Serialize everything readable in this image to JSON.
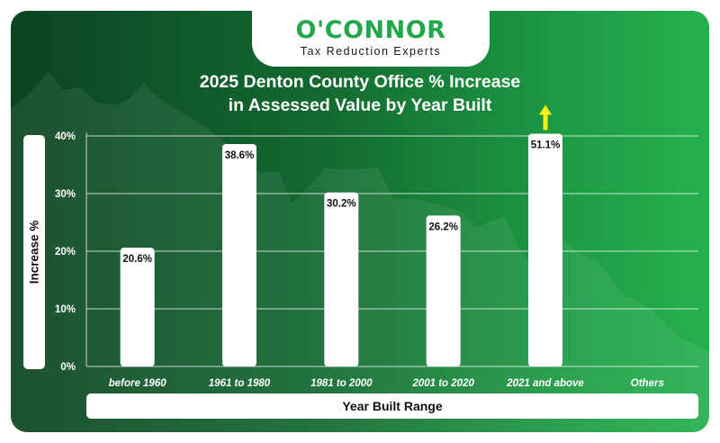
{
  "logo": {
    "name": "O'CONNOR",
    "tagline": "Tax Reduction Experts"
  },
  "colors": {
    "background_dark": "#0c4422",
    "background_light": "#25b04f",
    "bar": "#ffffff",
    "arrow": "#f2ef1c",
    "logo_green": "#22a84a"
  },
  "chart_data": {
    "type": "bar",
    "title": "2025 Denton County Office % Increase\nin Assessed Value by Year Built",
    "title_lines": [
      "2025 Denton County Office % Increase",
      "in Assessed Value by Year Built"
    ],
    "xlabel": "Year Built Range",
    "ylabel": "Increase %",
    "categories": [
      "before 1960",
      "1961 to 1980",
      "1981 to 2000",
      "2001 to 2020",
      "2021 and above",
      "Others"
    ],
    "values": [
      20.6,
      38.6,
      30.2,
      26.2,
      51.1,
      null
    ],
    "value_labels": [
      "20.6%",
      "38.6%",
      "30.2%",
      "26.2%",
      "51.1%",
      ""
    ],
    "yticks": [
      "0%",
      "10%",
      "20%",
      "30%",
      "40%"
    ],
    "ytick_values": [
      0,
      10,
      20,
      30,
      40
    ],
    "ylim": [
      0,
      40
    ],
    "grid": true,
    "annotations": [
      {
        "category": "2021 and above",
        "type": "up-arrow",
        "meaning": "value exceeds axis maximum"
      }
    ]
  }
}
